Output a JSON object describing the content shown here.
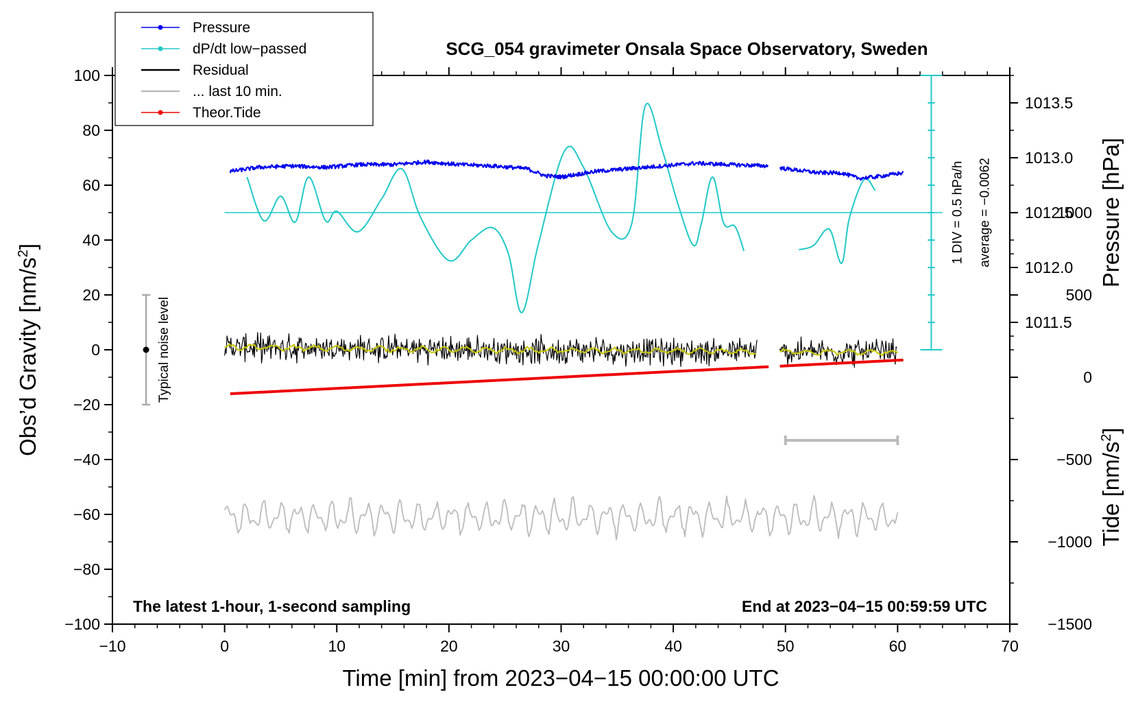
{
  "chart_data": {
    "type": "line",
    "title": "SCG_054 gravimeter Onsala Space Observatory, Sweden",
    "xlabel": "Time [min] from 2023−04−15 00:00:00 UTC",
    "ylabel": "Obs’d Gravity [nm/s",
    "ylabel_sup": "2",
    "ylabel_close": "]",
    "y2label_pressure": "Pressure [hPa]",
    "y2label_tide": "Tide [nm/s",
    "y2label_tide_sup": "2",
    "y2label_tide_close": "]",
    "xlim": [
      -10,
      70
    ],
    "ylim": [
      -100,
      100
    ],
    "x_ticks": [
      "−10",
      "0",
      "10",
      "20",
      "30",
      "40",
      "50",
      "60",
      "70"
    ],
    "x_tick_values": [
      -10,
      0,
      10,
      20,
      30,
      40,
      50,
      60,
      70
    ],
    "y_ticks": [
      "100",
      "80",
      "60",
      "40",
      "20",
      "0",
      "−20",
      "−40",
      "−60",
      "−80",
      "−100"
    ],
    "y_tick_values": [
      100,
      80,
      60,
      40,
      20,
      0,
      -20,
      -40,
      -60,
      -80,
      -100
    ],
    "pressure_ticks": [
      "1013.5",
      "1013.0",
      "1012.5",
      "1012.0",
      "1011.5"
    ],
    "pressure_tick_values": [
      1013.5,
      1013.0,
      1012.5,
      1012.0,
      1011.5
    ],
    "pressure_axis_map": {
      "value_at_gravity_50": 1012.5,
      "hpa_per_20_gravity": 0.5
    },
    "tide_ticks": [
      "1000",
      "500",
      "0",
      "−500",
      "−1000",
      "−1500"
    ],
    "tide_tick_values": [
      1000,
      500,
      0,
      -500,
      -1000,
      -1500
    ],
    "tide_axis_map": {
      "tide_at_gravity_minus100": -1500,
      "tide_per_gravity_unit": 16.67
    },
    "legend": [
      {
        "label": "Pressure",
        "color": "#0000ee",
        "style": "line-dot"
      },
      {
        "label": "dP/dt low−passed",
        "color": "#20c8c8",
        "style": "line-dot"
      },
      {
        "label": "Residual",
        "color": "#000000",
        "style": "line"
      },
      {
        "label": "... last 10 min.",
        "color": "#bbbbbb",
        "style": "line"
      },
      {
        "label": "Theor.Tide",
        "color": "#ee0000",
        "style": "line-dot"
      }
    ],
    "series": [
      {
        "name": "Pressure",
        "color": "#0000ee",
        "unit": "gravity-axis",
        "x": [
          0.5,
          3,
          6,
          9,
          12,
          15,
          18,
          21,
          24,
          27,
          28.5,
          30,
          33,
          36,
          39,
          42,
          45,
          48.5,
          50,
          53,
          55,
          56.5,
          58,
          60.5
        ],
        "y": [
          65,
          66.5,
          67,
          66.5,
          67.5,
          67.5,
          68.5,
          67.5,
          67,
          66,
          63.5,
          63,
          65,
          66,
          67,
          68,
          67.5,
          67,
          66,
          64.5,
          64.5,
          62.5,
          63,
          64.5
        ]
      },
      {
        "name": "dP/dt low−passed",
        "color": "#20c8c8",
        "unit": "gravity-axis",
        "x": [
          2,
          3.5,
          5,
          6.3,
          7.5,
          9,
          10,
          11.9,
          14,
          15.8,
          17.5,
          20,
          22,
          23.9,
          25.3,
          26.5,
          28,
          30.3,
          32,
          34.5,
          36.3,
          37.5,
          39,
          40.5,
          41.8,
          42.5,
          43.5,
          44.5,
          45.5,
          46.3,
          51.2,
          52.5,
          53.9,
          55,
          55.7,
          57,
          58
        ],
        "y": [
          63,
          47,
          56,
          46.5,
          63,
          47,
          50.5,
          43,
          55,
          66,
          48,
          32.5,
          40,
          44.5,
          35,
          13.5,
          39,
          72.5,
          66.5,
          43,
          46,
          89,
          73,
          52,
          38,
          46,
          63,
          46,
          45,
          36,
          36.5,
          38,
          44,
          31.5,
          48,
          62,
          58
        ]
      },
      {
        "name": "dP/dt zero line",
        "color": "#20c8c8",
        "unit": "gravity-axis",
        "x": [
          0,
          64
        ],
        "y": [
          50,
          50
        ]
      },
      {
        "name": "Residual",
        "color": "#000000",
        "unit": "gravity-axis",
        "segments": [
          [
            0,
            47.5
          ],
          [
            49.5,
            60
          ]
        ],
        "amplitude": 6,
        "trend": [
          [
            0,
            1
          ],
          [
            20,
            0
          ],
          [
            40,
            -0.5
          ],
          [
            60,
            -1
          ]
        ]
      },
      {
        "name": "Residual (smoothed)",
        "color": "#c8c800",
        "unit": "gravity-axis",
        "segments": [
          [
            0,
            47.5
          ],
          [
            49.5,
            60
          ]
        ],
        "trend": [
          [
            0,
            1
          ],
          [
            20,
            0
          ],
          [
            40,
            -0.5
          ],
          [
            60,
            -1
          ]
        ]
      },
      {
        "name": "Theor.Tide",
        "color": "#ee0000",
        "unit": "tide-axis",
        "segments": [
          [
            0.5,
            48.5
          ],
          [
            49.5,
            60.5
          ]
        ],
        "x": [
          0.5,
          60.5
        ],
        "y": [
          -100,
          105
        ]
      },
      {
        "name": "... last 10 min.",
        "color": "#bbbbbb",
        "unit": "gravity-axis",
        "x_range": [
          0,
          60
        ],
        "center": -61,
        "amplitude": 7
      }
    ],
    "last10_bar": {
      "x_range": [
        50,
        60
      ],
      "y": -33,
      "color": "#bbbbbb"
    },
    "noise_level": {
      "x": -7,
      "y": 0,
      "range": [
        -20,
        20
      ],
      "label": "Typical noise level"
    },
    "pressure_scale_bar": {
      "x": 63,
      "y_range": [
        0,
        100
      ],
      "label_div": "1 DIV = 0.5 hPa/h",
      "label_avg": "average = −0.0062"
    },
    "note_left": "The latest 1-hour, 1-second sampling",
    "note_right": "End at 2023−04−15 00:59:59 UTC"
  }
}
